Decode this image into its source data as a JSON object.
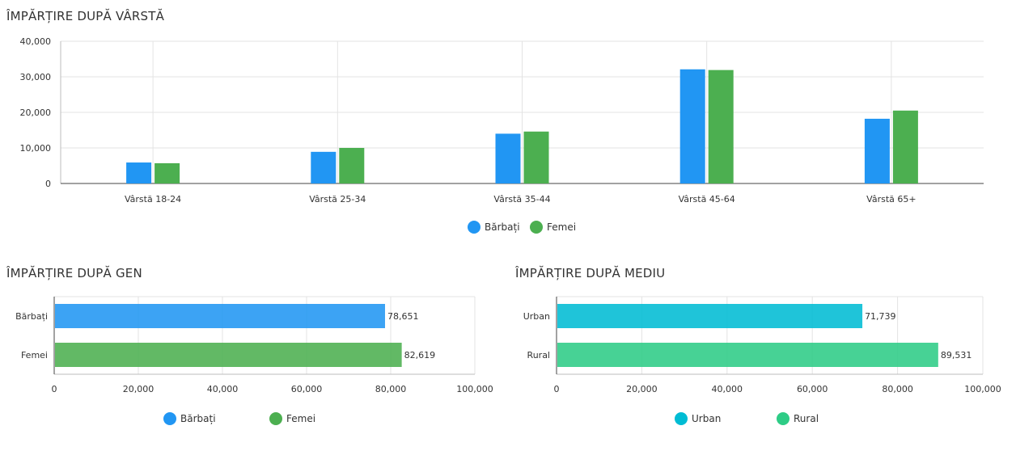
{
  "charts": {
    "age": {
      "title": "ÎMPĂRȚIRE DUPĂ VÂRSTĂ"
    },
    "gender": {
      "title": "ÎMPĂRȚIRE DUPĂ GEN"
    },
    "environment": {
      "title": "ÎMPĂRȚIRE DUPĂ MEDIU"
    }
  },
  "chart_data": [
    {
      "type": "bar",
      "title": "ÎMPĂRȚIRE DUPĂ VÂRSTĂ",
      "orientation": "vertical",
      "categories": [
        "Vârstă 18-24",
        "Vârstă 25-34",
        "Vârstă 35-44",
        "Vârstă 45-64",
        "Vârstă 65+"
      ],
      "series": [
        {
          "name": "Bărbați",
          "color": "#2196f3",
          "values": [
            5900,
            8900,
            14000,
            32100,
            18200
          ]
        },
        {
          "name": "Femei",
          "color": "#4caf50",
          "values": [
            5700,
            10000,
            14600,
            31900,
            20500
          ]
        }
      ],
      "ylim": [
        0,
        40000
      ],
      "yticks": [
        "0",
        "10,000",
        "20,000",
        "30,000",
        "40,000"
      ],
      "grid": true,
      "legend": "bottom-center"
    },
    {
      "type": "bar",
      "title": "ÎMPĂRȚIRE DUPĂ GEN",
      "orientation": "horizontal",
      "categories": [
        "Bărbați",
        "Femei"
      ],
      "values": [
        78651,
        82619
      ],
      "value_labels": [
        "78,651",
        "82,619"
      ],
      "colors": [
        "#2196f3",
        "#4caf50"
      ],
      "xlim": [
        0,
        100000
      ],
      "xticks": [
        "0",
        "20,000",
        "40,000",
        "60,000",
        "80,000",
        "100,000"
      ],
      "grid": true,
      "legend": "bottom-center"
    },
    {
      "type": "bar",
      "title": "ÎMPĂRȚIRE DUPĂ MEDIU",
      "orientation": "horizontal",
      "categories": [
        "Urban",
        "Rural"
      ],
      "values": [
        71739,
        89531
      ],
      "value_labels": [
        "71,739",
        "89,531"
      ],
      "colors": [
        "#00bcd4",
        "#2ecc86"
      ],
      "xlim": [
        0,
        100000
      ],
      "xticks": [
        "0",
        "20,000",
        "40,000",
        "60,000",
        "80,000",
        "100,000"
      ],
      "grid": true,
      "legend": "bottom-center"
    }
  ]
}
